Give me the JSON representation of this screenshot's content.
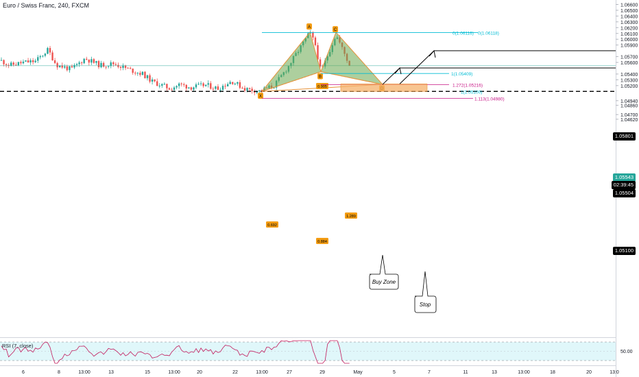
{
  "header": {
    "title": "Euro / Swiss Franc, 240, FXCM"
  },
  "price_tags": {
    "target": "1.05801",
    "current": "1.05543",
    "countdown": "02:39:45",
    "close": "1.05504",
    "support": "1.05100"
  },
  "rsi": {
    "label": "RSI (7, close)",
    "value": "50.00"
  },
  "chart_data": {
    "type": "candlestick",
    "title": "Euro / Swiss Franc, 240, FXCM",
    "y_axis_labels": [
      "1.06600",
      "1.06500",
      "1.06400",
      "1.06300",
      "1.06200",
      "1.06100",
      "1.06000",
      "1.05900",
      "1.05700",
      "1.05600",
      "1.05400",
      "1.05300",
      "1.05200",
      "1.04940",
      "1.04860",
      "1.04700",
      "1.04620"
    ],
    "y_axis_values": [
      1.066,
      1.065,
      1.064,
      1.063,
      1.062,
      1.061,
      1.06,
      1.059,
      1.057,
      1.056,
      1.054,
      1.053,
      1.052,
      1.0494,
      1.0486,
      1.047,
      1.0462
    ],
    "x_axis_labels": [
      "6",
      "8",
      "13:00",
      "13",
      "15",
      "13:00",
      "20",
      "22",
      "13:00",
      "27",
      "29",
      "May",
      "5",
      "7",
      "11",
      "13",
      "13:00",
      "18",
      "20",
      "13:0"
    ],
    "ylim": [
      1.0455,
      1.0665
    ],
    "harmonic_pattern": {
      "points": [
        "X",
        "A",
        "B",
        "C",
        "D"
      ],
      "ratios": [
        "0.692",
        "0.905",
        "1.289",
        "0.884"
      ]
    },
    "fib_levels": [
      {
        "label": "0(1.06116)",
        "value": 1.06116
      },
      {
        "label": "0(1.06118)",
        "value": 1.06118
      },
      {
        "label": "1(1.05409)",
        "value": 1.05409
      },
      {
        "label": "1.272(1.05216)",
        "value": 1.05216
      },
      {
        "label": "1(1.05100)",
        "value": 1.051
      },
      {
        "label": "1.113(1.04980)",
        "value": 1.0498
      }
    ],
    "annotations": [
      "Buy Zone",
      "Stop"
    ],
    "support_level": 1.051,
    "targets": [
      1.05801,
      1.05504
    ],
    "rsi_reference": 50.0
  },
  "colors": {
    "bull": "#26a69a",
    "bear": "#ef5350",
    "pattern_fill": "#6aa84f",
    "pattern_line": "#e69138",
    "cyan_level": "#00bcd4",
    "magenta_level": "#c71585",
    "buy_zone": "#f6b26b",
    "rsi_line": "#c2185b",
    "rsi_fill": "#e0f7fa"
  }
}
